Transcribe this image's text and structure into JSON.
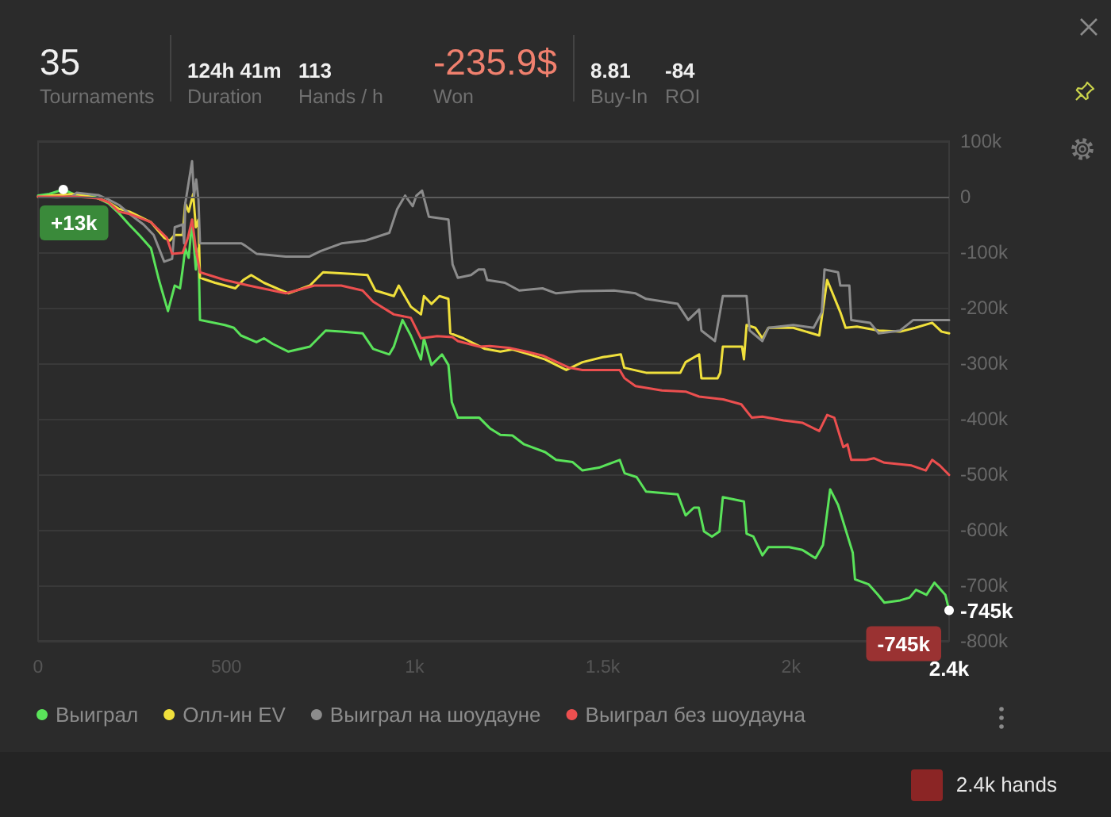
{
  "chart_data": [
    {
      "type": "other",
      "annotations": [
        "35",
        "Tournaments",
        "124h 41m",
        "Duration",
        "113",
        "Hands / h",
        "-235.9$",
        "Won",
        "8.81",
        "Buy-In",
        "-84",
        "ROI"
      ]
    },
    {
      "type": "line",
      "legend": "bottom left",
      "grid": "y",
      "xlim": [
        0,
        2420
      ],
      "xticks": [
        0,
        500,
        {
          "value": 1000,
          "label": "1k"
        },
        {
          "value": 1500,
          "label": "1.5k"
        },
        {
          "value": 2000,
          "label": "2k"
        },
        {
          "value": 2420,
          "label": "2.4k"
        }
      ],
      "ylim": [
        -800000,
        100000
      ],
      "yticks": [
        {
          "value": 100000,
          "label": "100k"
        },
        0,
        {
          "value": -100000,
          "label": "-100k"
        },
        {
          "value": -200000,
          "label": "-200k"
        },
        {
          "value": -300000,
          "label": "-300k"
        },
        {
          "value": -400000,
          "label": "-400k"
        },
        {
          "value": -500000,
          "label": "-500k"
        },
        {
          "value": -600000,
          "label": "-600k"
        },
        {
          "value": -700000,
          "label": "-700k"
        },
        {
          "value": -745000,
          "label": "-745k"
        },
        {
          "value": -800000,
          "label": "-800k"
        }
      ],
      "ref_lines": [
        {
          "axis": "y",
          "value": 0,
          "color": "#5c5c5c"
        }
      ],
      "annotations": [
        {
          "text": "+13k",
          "x": 67,
          "y": 13000
        },
        {
          "text": "-745k",
          "x": 2420,
          "y": -745000
        },
        "2.4k hands"
      ],
      "series": [
        {
          "name": "Выиграл",
          "color": "#5ae35a",
          "x": [
            0,
            30,
            67,
            100,
            150,
            187,
            215,
            243,
            270,
            300,
            321,
            345,
            363,
            377,
            384,
            391,
            400,
            409,
            419,
            426,
            430,
            496,
            520,
            539,
            580,
            600,
            623,
            665,
            722,
            764,
            805,
            862,
            890,
            933,
            945,
            968,
            990,
            1017,
            1025,
            1045,
            1073,
            1090,
            1099,
            1115,
            1172,
            1200,
            1228,
            1260,
            1291,
            1347,
            1376,
            1420,
            1446,
            1490,
            1545,
            1558,
            1590,
            1615,
            1699,
            1720,
            1742,
            1755,
            1769,
            1790,
            1810,
            1819,
            1875,
            1882,
            1900,
            1924,
            1940,
            1995,
            2030,
            2065,
            2085,
            2104,
            2125,
            2149,
            2164,
            2170,
            2206,
            2230,
            2248,
            2290,
            2315,
            2332,
            2360,
            2381,
            2410,
            2420
          ],
          "values": [
            2000,
            5000,
            13000,
            3000,
            0,
            -12000,
            -30000,
            -51000,
            -70000,
            -93000,
            -150000,
            -206000,
            -160000,
            -165000,
            -131000,
            -93000,
            -110000,
            -46000,
            -131000,
            -93000,
            -222000,
            -231000,
            -236000,
            -250000,
            -262000,
            -255000,
            -265000,
            -279000,
            -270000,
            -241000,
            -243000,
            -246000,
            -274000,
            -284000,
            -270000,
            -222000,
            -250000,
            -293000,
            -255000,
            -303000,
            -284000,
            -303000,
            -370000,
            -398000,
            -398000,
            -417000,
            -429000,
            -430000,
            -446000,
            -460000,
            -474000,
            -478000,
            -493000,
            -488000,
            -474000,
            -498000,
            -505000,
            -531000,
            -536000,
            -574000,
            -560000,
            -560000,
            -603000,
            -612000,
            -603000,
            -541000,
            -549000,
            -607000,
            -612000,
            -646000,
            -631000,
            -631000,
            -636000,
            -651000,
            -627000,
            -527000,
            -555000,
            -608000,
            -641000,
            -689000,
            -698000,
            -716000,
            -731000,
            -727000,
            -722000,
            -708000,
            -717000,
            -695000,
            -717000,
            -745000
          ]
        },
        {
          "name": "Олл-ин EV",
          "color": "#f0e03c",
          "x": [
            0,
            50,
            102,
            160,
            187,
            215,
            243,
            300,
            335,
            350,
            363,
            384,
            391,
            400,
            412,
            419,
            426,
            430,
            470,
            524,
            545,
            566,
            600,
            665,
            722,
            757,
            830,
            875,
            896,
            945,
            958,
            990,
            1017,
            1025,
            1045,
            1066,
            1090,
            1095,
            1130,
            1187,
            1228,
            1260,
            1300,
            1347,
            1403,
            1446,
            1500,
            1548,
            1557,
            1615,
            1706,
            1720,
            1756,
            1762,
            1805,
            1812,
            1819,
            1870,
            1875,
            1882,
            1905,
            1924,
            1940,
            2006,
            2075,
            2096,
            2131,
            2145,
            2175,
            2233,
            2290,
            2330,
            2375,
            2400,
            2420
          ],
          "values": [
            0,
            3000,
            5000,
            -3000,
            -10000,
            -22000,
            -27000,
            -46000,
            -74000,
            -79000,
            -69000,
            -69000,
            -12000,
            -27000,
            5000,
            -55000,
            -41000,
            -146000,
            -155000,
            -165000,
            -150000,
            -141000,
            -155000,
            -174000,
            -160000,
            -136000,
            -139000,
            -141000,
            -169000,
            -179000,
            -160000,
            -198000,
            -212000,
            -179000,
            -193000,
            -179000,
            -184000,
            -246000,
            -255000,
            -274000,
            -279000,
            -275000,
            -283000,
            -293000,
            -312000,
            -298000,
            -289000,
            -284000,
            -308000,
            -317000,
            -317000,
            -298000,
            -284000,
            -327000,
            -327000,
            -317000,
            -270000,
            -270000,
            -293000,
            -231000,
            -236000,
            -255000,
            -236000,
            -236000,
            -250000,
            -150000,
            -208000,
            -236000,
            -234000,
            -241000,
            -243000,
            -236000,
            -227000,
            -243000,
            -246000
          ]
        },
        {
          "name": "Выиграл на шоудауне",
          "color": "#8c8c8c",
          "x": [
            0,
            50,
            90,
            102,
            160,
            187,
            215,
            243,
            280,
            307,
            335,
            356,
            363,
            384,
            388,
            391,
            409,
            414,
            420,
            426,
            430,
            540,
            550,
            581,
            658,
            720,
            750,
            806,
            870,
            933,
            954,
            975,
            995,
            1005,
            1020,
            1038,
            1090,
            1101,
            1115,
            1150,
            1170,
            1185,
            1193,
            1240,
            1278,
            1340,
            1376,
            1440,
            1530,
            1587,
            1615,
            1699,
            1727,
            1756,
            1762,
            1798,
            1819,
            1882,
            1890,
            1924,
            1940,
            2006,
            2060,
            2082,
            2089,
            2125,
            2131,
            2155,
            2160,
            2210,
            2233,
            2290,
            2325,
            2420
          ],
          "values": [
            0,
            -1000,
            0,
            7000,
            3000,
            -5000,
            -15000,
            -31000,
            -50000,
            -69000,
            -117000,
            -112000,
            -55000,
            -50000,
            -84000,
            -12000,
            64000,
            0,
            31000,
            -6000,
            -84000,
            -84000,
            -88000,
            -103000,
            -108000,
            -108000,
            -98000,
            -84000,
            -79000,
            -65000,
            -22000,
            2000,
            -17000,
            2000,
            11000,
            -36000,
            -41000,
            -122000,
            -146000,
            -141000,
            -131000,
            -131000,
            -150000,
            -155000,
            -169000,
            -165000,
            -174000,
            -170000,
            -169000,
            -174000,
            -184000,
            -193000,
            -222000,
            -203000,
            -241000,
            -260000,
            -179000,
            -179000,
            -241000,
            -260000,
            -236000,
            -231000,
            -236000,
            -208000,
            -131000,
            -136000,
            -160000,
            -160000,
            -222000,
            -227000,
            -246000,
            -241000,
            -222000,
            -222000
          ]
        },
        {
          "name": "Выиграл без шоудауна",
          "color": "#ec4f4f",
          "x": [
            0,
            100,
            160,
            187,
            215,
            243,
            300,
            342,
            356,
            384,
            398,
            409,
            419,
            430,
            496,
            560,
            658,
            734,
            805,
            862,
            890,
            945,
            990,
            1017,
            1060,
            1101,
            1115,
            1172,
            1200,
            1250,
            1297,
            1340,
            1411,
            1446,
            1545,
            1558,
            1587,
            1657,
            1720,
            1756,
            1820,
            1868,
            1896,
            1924,
            1980,
            2030,
            2075,
            2096,
            2115,
            2139,
            2150,
            2160,
            2200,
            2220,
            2248,
            2320,
            2358,
            2375,
            2395,
            2420
          ],
          "values": [
            0,
            0,
            -3000,
            -10000,
            -27000,
            -31000,
            -46000,
            -74000,
            -103000,
            -101000,
            -74000,
            -41000,
            -93000,
            -136000,
            -150000,
            -160000,
            -174000,
            -160000,
            -160000,
            -169000,
            -189000,
            -212000,
            -218000,
            -255000,
            -251000,
            -253000,
            -260000,
            -270000,
            -269000,
            -272000,
            -279000,
            -286000,
            -308000,
            -312000,
            -312000,
            -327000,
            -341000,
            -349000,
            -351000,
            -360000,
            -365000,
            -374000,
            -398000,
            -396000,
            -403000,
            -407000,
            -422000,
            -393000,
            -398000,
            -451000,
            -446000,
            -474000,
            -474000,
            -471000,
            -479000,
            -484000,
            -493000,
            -474000,
            -484000,
            -501000
          ]
        }
      ]
    }
  ]
}
